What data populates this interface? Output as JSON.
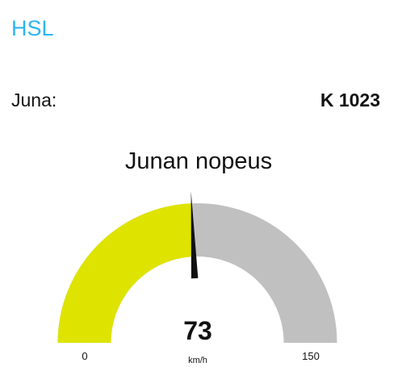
{
  "header": {
    "title": "HSL"
  },
  "train": {
    "label": "Juna:",
    "id": "K 1023"
  },
  "gauge": {
    "title": "Junan nopeus",
    "value": 73,
    "min": 0,
    "max": 150,
    "min_label": "0",
    "max_label": "150",
    "value_label": "73",
    "unit": "km/h",
    "fill_color": "#dee300",
    "track_color": "#c0c0c0",
    "needle_color": "#111111"
  }
}
